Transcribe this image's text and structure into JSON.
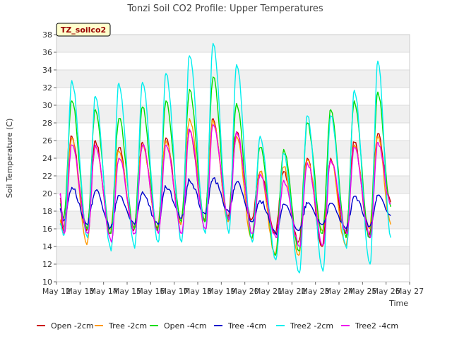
{
  "chart_data": {
    "type": "line",
    "title": "Tonzi Soil CO2 Profile: Upper Temperatures",
    "xlabel": "Time",
    "ylabel": "Soil Temperature (C)",
    "station_label": "TZ_soilco2",
    "ylim": [
      10,
      38
    ],
    "yticks": [
      10,
      12,
      14,
      16,
      18,
      20,
      22,
      24,
      26,
      28,
      30,
      32,
      34,
      36,
      38
    ],
    "xlim": [
      12,
      27
    ],
    "xticks": [
      {
        "x": 12,
        "label": "May 12"
      },
      {
        "x": 13,
        "label": "May 13"
      },
      {
        "x": 14,
        "label": "May 14"
      },
      {
        "x": 15,
        "label": "May 15"
      },
      {
        "x": 16,
        "label": "May 16"
      },
      {
        "x": 17,
        "label": "May 17"
      },
      {
        "x": 18,
        "label": "May 18"
      },
      {
        "x": 19,
        "label": "May 19"
      },
      {
        "x": 20,
        "label": "May 20"
      },
      {
        "x": 21,
        "label": "May 21"
      },
      {
        "x": 22,
        "label": "May 22"
      },
      {
        "x": 23,
        "label": "May 23"
      },
      {
        "x": 24,
        "label": "May 24"
      },
      {
        "x": 25,
        "label": "May 25"
      },
      {
        "x": 26,
        "label": "May 26"
      },
      {
        "x": 27,
        "label": "May 27"
      }
    ],
    "grid": true,
    "legend_position": "bottom",
    "days": [
      13,
      14,
      15,
      16,
      17,
      18,
      19,
      20,
      21,
      22,
      23,
      24,
      25,
      26
    ],
    "series": [
      {
        "name": "Open -2cm",
        "color": "#cc0000",
        "start": 19.5,
        "end": 19.0,
        "max": [
          26.5,
          26.0,
          25.2,
          25.8,
          26.3,
          27.2,
          28.5,
          27.0,
          22.5,
          22.5,
          24.0,
          24.0,
          25.8,
          26.8
        ],
        "min": [
          15.8,
          15.8,
          15.5,
          15.8,
          16.0,
          16.5,
          17.0,
          17.5,
          17.0,
          15.5,
          14.5,
          14.0,
          15.5,
          15.2
        ]
      },
      {
        "name": "Tree -2cm",
        "color": "#ff9900",
        "start": 17.0,
        "end": 16.5,
        "max": [
          26.3,
          25.3,
          24.8,
          25.5,
          26.0,
          28.5,
          28.3,
          26.5,
          22.5,
          23.0,
          23.8,
          23.8,
          25.5,
          26.5
        ],
        "min": [
          15.5,
          14.2,
          16.0,
          16.2,
          16.3,
          16.5,
          16.8,
          16.8,
          14.8,
          13.0,
          13.0,
          15.8,
          14.0,
          16.0
        ]
      },
      {
        "name": "Open -4cm",
        "color": "#00dd00",
        "start": 18.8,
        "end": 18.5,
        "max": [
          30.5,
          29.5,
          28.5,
          29.8,
          30.5,
          31.8,
          33.2,
          30.2,
          25.2,
          25.0,
          28.0,
          29.5,
          30.5,
          31.5
        ],
        "min": [
          17.2,
          16.0,
          15.5,
          16.0,
          15.8,
          16.8,
          16.8,
          17.0,
          15.0,
          13.0,
          13.5,
          15.5,
          15.0,
          15.0
        ]
      },
      {
        "name": "Tree -4cm",
        "color": "#0000cc",
        "start": 18.2,
        "end": 17.5,
        "max": [
          20.7,
          20.3,
          19.8,
          20.2,
          20.7,
          21.5,
          21.7,
          21.3,
          19.2,
          18.8,
          18.9,
          18.9,
          19.7,
          19.8
        ],
        "min": [
          17.0,
          16.5,
          16.2,
          16.5,
          16.5,
          17.2,
          17.7,
          18.0,
          16.8,
          15.5,
          15.8,
          16.5,
          16.0,
          16.3
        ]
      },
      {
        "name": "Tree2 -2cm",
        "color": "#00eeee",
        "start": 16.5,
        "end": 15.0,
        "max": [
          32.8,
          31.0,
          32.5,
          32.6,
          33.6,
          35.6,
          37.0,
          34.6,
          26.5,
          24.5,
          28.8,
          28.8,
          31.7,
          35.0
        ],
        "min": [
          15.3,
          15.0,
          13.5,
          13.8,
          14.5,
          14.5,
          15.5,
          15.5,
          14.5,
          12.5,
          11.0,
          11.2,
          13.8,
          12.0
        ]
      },
      {
        "name": "Tree2 -4cm",
        "color": "#ee00ee",
        "start": 19.8,
        "end": 18.8,
        "max": [
          25.5,
          25.5,
          24.0,
          25.5,
          25.5,
          27.3,
          27.8,
          27.0,
          22.2,
          21.5,
          23.5,
          23.8,
          25.2,
          25.8
        ],
        "min": [
          15.5,
          15.5,
          14.5,
          15.5,
          15.5,
          15.5,
          16.0,
          17.0,
          15.5,
          15.0,
          14.0,
          14.2,
          15.5,
          15.0
        ]
      }
    ]
  }
}
